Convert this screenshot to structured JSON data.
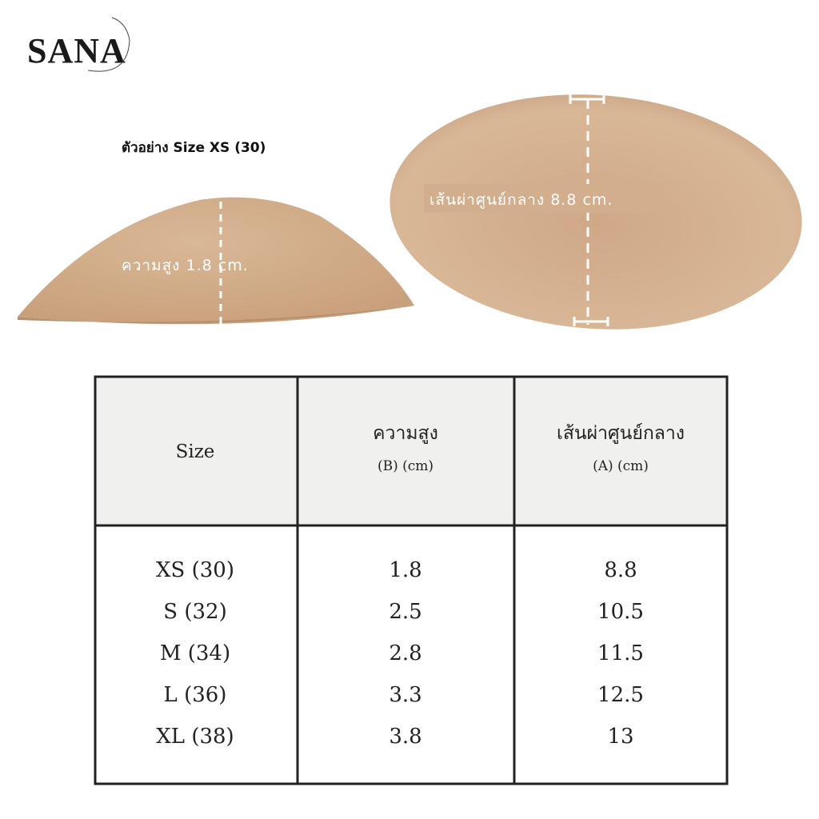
{
  "logo": "SANA",
  "caption": "ตัวอย่าง Size XS (30)",
  "height_label": "ความสูง 1.8 cm.",
  "diameter_label": "เส้นผ่าศูนย์กลาง 8.8 cm.",
  "table": {
    "header": [
      "Size",
      "ความสูง",
      "เส้นผ่าศูนย์กลาง"
    ],
    "header_sub": [
      "(B) (cm)",
      "(A) (cm)"
    ],
    "rows": [
      [
        "XS (30)",
        "1.8",
        "8.8"
      ],
      [
        "S  (32)",
        "2.5",
        "10.5"
      ],
      [
        "M (34)",
        "2.8",
        "11.5"
      ],
      [
        "L  (36)",
        "3.3",
        "12.5"
      ],
      [
        "XL  (38)",
        "3.8",
        "13"
      ]
    ]
  }
}
